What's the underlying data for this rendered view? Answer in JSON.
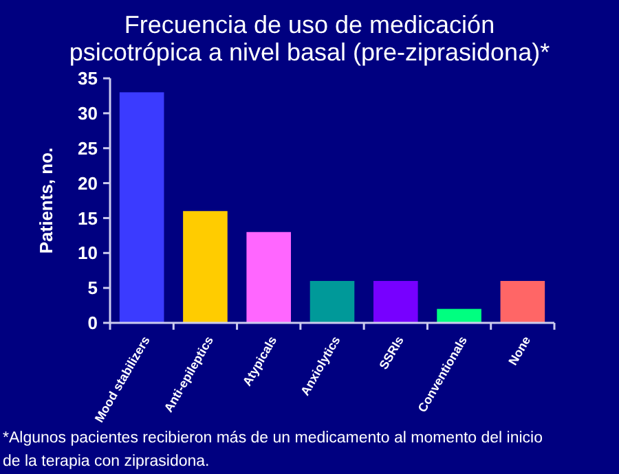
{
  "chart_data": {
    "type": "bar",
    "title": "Frecuencia de uso de medicación\npsicotrópica a nivel basal (pre-ziprasidona)*",
    "ylabel": "Patients, no.",
    "categories": [
      "Mood stabilizers",
      "Anti-epileptics",
      "Atypicals",
      "Anxiolytics",
      "SSRIs",
      "Conventionals",
      "None"
    ],
    "values": [
      33,
      16,
      13,
      6,
      6,
      2,
      6
    ],
    "colors": [
      "#3b3bff",
      "#ffcc00",
      "#ff66ff",
      "#009999",
      "#7700ff",
      "#00ff80",
      "#ff6666"
    ],
    "ylim": [
      0,
      35
    ],
    "yticks": [
      0,
      5,
      10,
      15,
      20,
      25,
      30,
      35
    ],
    "grid": false,
    "annotations": [
      "*Algunos pacientes recibieron más de un medicamento al momento del inicio\nde la terapia con ziprasidona."
    ]
  }
}
